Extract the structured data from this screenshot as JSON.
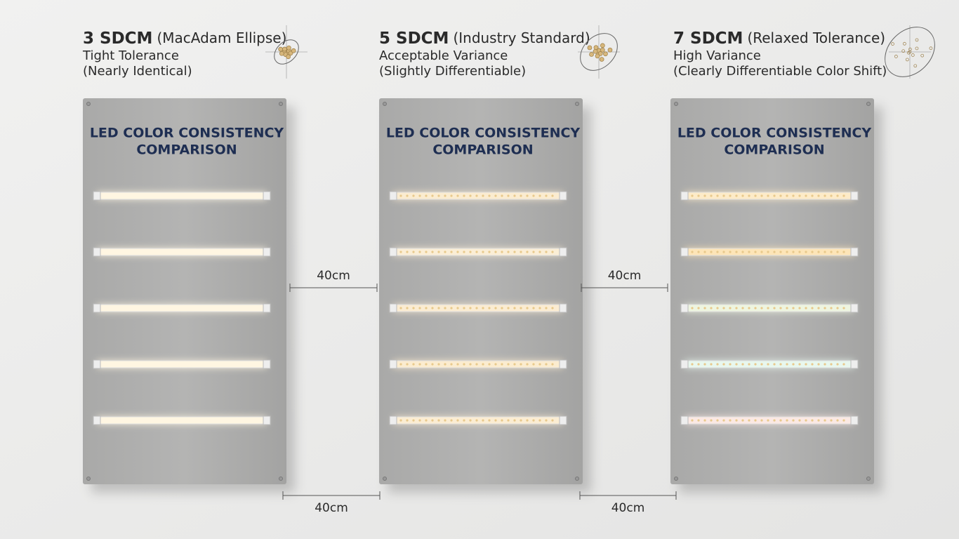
{
  "panels": [
    {
      "heading": {
        "bold": "3 SDCM",
        "rest": "(MacAdam Ellipse)"
      },
      "lines": [
        "Tight Tolerance",
        "(Nearly Identical)"
      ],
      "board_title": [
        "LED COLOR CONSISTENCY",
        "COMPARISON"
      ]
    },
    {
      "heading": {
        "bold": "5 SDCM",
        "rest": "(Industry Standard)"
      },
      "lines": [
        "Acceptable Variance",
        "(Slightly Differentiable)"
      ],
      "board_title": [
        "LED COLOR CONSISTENCY",
        "COMPARISON"
      ]
    },
    {
      "heading": {
        "bold": "7 SDCM",
        "rest": "(Relaxed Tolerance)"
      },
      "lines": [
        "High Variance",
        "(Clearly Differentiable Color Shift)"
      ],
      "board_title": [
        "LED COLOR CONSISTENCY",
        "COMPARISON"
      ]
    }
  ],
  "dimensions": {
    "between": [
      "40cm",
      "40cm"
    ],
    "bottom": [
      "40cm",
      "40cm"
    ]
  }
}
